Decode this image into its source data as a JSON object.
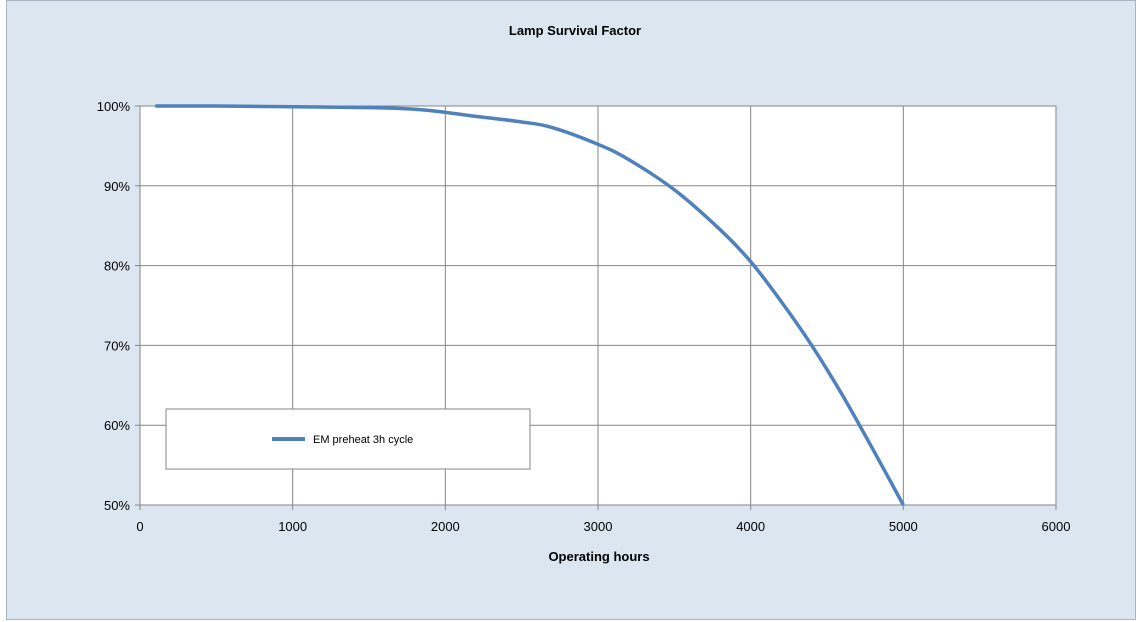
{
  "chart_data": {
    "type": "line",
    "title": "Lamp Survival Factor",
    "xlabel": "Operating hours",
    "ylabel": "",
    "xlim": [
      0,
      6000
    ],
    "ylim": [
      0.5,
      1.0
    ],
    "x_ticks": [
      "0",
      "1000",
      "2000",
      "3000",
      "4000",
      "5000",
      "6000"
    ],
    "y_ticks": [
      "50%",
      "60%",
      "70%",
      "80%",
      "90%",
      "100%"
    ],
    "grid": true,
    "legend_position": "left",
    "series": [
      {
        "name": "EM preheat 3h cycle",
        "color": "#4f81bd",
        "x": [
          100,
          500,
          1000,
          1500,
          1800,
          2000,
          2200,
          2500,
          2700,
          3000,
          3200,
          3500,
          3800,
          4000,
          4200,
          4400,
          4600,
          4800,
          5000
        ],
        "y": [
          1.0,
          1.0,
          0.999,
          0.998,
          0.996,
          0.992,
          0.987,
          0.98,
          0.973,
          0.952,
          0.933,
          0.895,
          0.845,
          0.805,
          0.755,
          0.7,
          0.638,
          0.57,
          0.5
        ]
      }
    ]
  }
}
